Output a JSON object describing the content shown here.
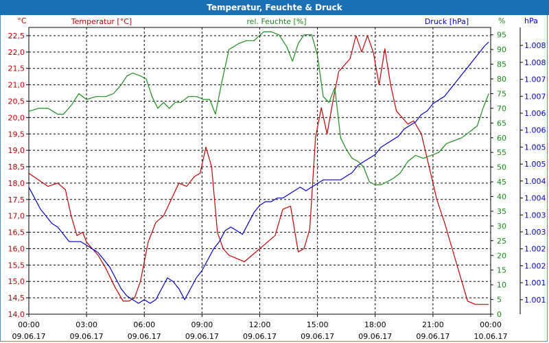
{
  "chart_data": {
    "type": "line",
    "title": "Temperatur, Feuchte & Druck",
    "left_axis": {
      "unit": "°C",
      "label": "Temperatur [°C]",
      "min": 14.0,
      "max": 22.75,
      "ticks": [
        "14,0",
        "14,5",
        "15,0",
        "15,5",
        "16,0",
        "16,5",
        "17,0",
        "17,5",
        "18,0",
        "18,5",
        "19,0",
        "19,5",
        "20,0",
        "20,5",
        "21,0",
        "21,5",
        "22,0",
        "22,5"
      ]
    },
    "mid_axis": {
      "unit": "%",
      "label": "rel. Feuchte [%]",
      "min": 0,
      "max": 97.5,
      "ticks": [
        "0",
        "5",
        "10",
        "15",
        "20",
        "25",
        "30",
        "35",
        "40",
        "45",
        "50",
        "55",
        "60",
        "65",
        "70",
        "75",
        "80",
        "85",
        "90",
        "95"
      ]
    },
    "right_axis": {
      "unit": "hPa",
      "label": "Druck [hPa]",
      "min": 1000.6,
      "max": 1008.5,
      "ticks": [
        "1.001",
        "1.001",
        "1.002",
        "1.002",
        "1.003",
        "1.003",
        "1.004",
        "1.004",
        "1.005",
        "1.005",
        "1.006",
        "1.006",
        "1.007",
        "1.007",
        "1.008",
        "1.008"
      ]
    },
    "x_labels": [
      {
        "time": "00:00",
        "date": "09.06.17"
      },
      {
        "time": "03:00",
        "date": "09.06.17"
      },
      {
        "time": "06:00",
        "date": "09.06.17"
      },
      {
        "time": "09:00",
        "date": "09.06.17"
      },
      {
        "time": "12:00",
        "date": "09.06.17"
      },
      {
        "time": "15:00",
        "date": "09.06.17"
      },
      {
        "time": "18:00",
        "date": "09.06.17"
      },
      {
        "time": "21:00",
        "date": "09.06.17"
      },
      {
        "time": "00:00",
        "date": "10.06.17"
      }
    ],
    "series": [
      {
        "name": "Temperatur [°C]",
        "color": "#c00000",
        "axis": "left",
        "x": [
          0,
          0.5,
          1,
          1.5,
          1.9,
          2.2,
          2.5,
          2.8,
          3.0,
          3.3,
          3.6,
          4.0,
          4.5,
          4.9,
          5.2,
          5.5,
          5.8,
          6.2,
          6.6,
          7.0,
          7.4,
          7.8,
          8.2,
          8.6,
          8.9,
          9.2,
          9.5,
          9.8,
          10.1,
          10.4,
          10.8,
          11.2,
          11.6,
          12.0,
          12.4,
          12.8,
          13.2,
          13.6,
          14.0,
          14.3,
          14.6,
          14.9,
          15.2,
          15.5,
          15.8,
          16.1,
          16.4,
          16.7,
          17.0,
          17.3,
          17.6,
          17.9,
          18.2,
          18.5,
          18.8,
          19.1,
          19.4,
          19.7,
          20.0,
          20.4,
          20.8,
          21.2,
          21.6,
          22.0,
          22.4,
          22.8,
          23.2,
          23.6,
          23.9
        ],
        "values": [
          18.3,
          18.1,
          17.9,
          18.0,
          17.8,
          17.0,
          16.4,
          16.5,
          16.2,
          16.0,
          15.8,
          15.4,
          14.8,
          14.4,
          14.4,
          14.5,
          15.0,
          16.2,
          16.8,
          17.0,
          17.5,
          18.0,
          17.9,
          18.2,
          18.3,
          19.1,
          18.5,
          16.5,
          16.0,
          15.8,
          15.7,
          15.6,
          15.8,
          16.0,
          16.2,
          16.4,
          17.2,
          17.3,
          15.9,
          16.0,
          16.6,
          19.4,
          20.3,
          19.5,
          20.5,
          21.4,
          21.6,
          21.8,
          22.5,
          22.0,
          22.5,
          22.0,
          21.0,
          22.1,
          21.0,
          20.2,
          20.0,
          19.8,
          19.9,
          19.5,
          18.5,
          17.5,
          16.8,
          16.0,
          15.2,
          14.4,
          14.3,
          14.3,
          14.3
        ]
      },
      {
        "name": "rel. Feuchte [%]",
        "color": "#1a8a1a",
        "axis": "mid",
        "x": [
          0,
          0.5,
          1,
          1.5,
          1.8,
          2.2,
          2.6,
          3.0,
          3.5,
          4.0,
          4.4,
          4.8,
          5.1,
          5.4,
          5.8,
          6.1,
          6.4,
          6.7,
          7.0,
          7.3,
          7.6,
          7.9,
          8.3,
          8.7,
          9.1,
          9.4,
          9.7,
          10.0,
          10.4,
          10.9,
          11.3,
          11.7,
          12.2,
          12.6,
          13.0,
          13.4,
          13.7,
          14.0,
          14.3,
          14.7,
          15.0,
          15.3,
          15.6,
          15.9,
          16.2,
          16.5,
          16.8,
          17.1,
          17.4,
          17.7,
          18.0,
          18.3,
          18.6,
          18.9,
          19.3,
          19.7,
          20.1,
          20.5,
          20.9,
          21.3,
          21.7,
          22.1,
          22.5,
          22.9,
          23.3,
          23.6,
          23.9
        ],
        "values": [
          69,
          70,
          70,
          68,
          68,
          71,
          75,
          73,
          74,
          74,
          75,
          78,
          81,
          82,
          81,
          80,
          74,
          70,
          72,
          70,
          72,
          72,
          74,
          74,
          73,
          73,
          68,
          78,
          90,
          92,
          93,
          93,
          96,
          96,
          95,
          91,
          86,
          92,
          95,
          95,
          88,
          74,
          72,
          77,
          60,
          56,
          53,
          52,
          50,
          45,
          44,
          44,
          45,
          46,
          48,
          52,
          54,
          53,
          54,
          55,
          58,
          59,
          60,
          62,
          64,
          70,
          75
        ]
      },
      {
        "name": "Druck [hPa]",
        "color": "#0000c0",
        "axis": "right",
        "x": [
          0,
          0.3,
          0.6,
          0.9,
          1.2,
          1.5,
          1.8,
          2.1,
          2.4,
          2.7,
          3.0,
          3.3,
          3.6,
          3.9,
          4.2,
          4.5,
          4.8,
          5.1,
          5.4,
          5.7,
          6.0,
          6.3,
          6.6,
          6.9,
          7.2,
          7.5,
          7.8,
          8.1,
          8.4,
          8.7,
          9.0,
          9.3,
          9.6,
          9.9,
          10.2,
          10.5,
          10.8,
          11.1,
          11.4,
          11.7,
          12.0,
          12.3,
          12.6,
          12.9,
          13.2,
          13.5,
          13.8,
          14.1,
          14.4,
          14.7,
          15.0,
          15.3,
          15.6,
          15.9,
          16.2,
          16.5,
          16.8,
          17.1,
          17.4,
          17.7,
          18.0,
          18.3,
          18.6,
          18.9,
          19.2,
          19.5,
          19.8,
          20.1,
          20.4,
          20.7,
          21.0,
          21.3,
          21.6,
          21.9,
          22.2,
          22.5,
          22.8,
          23.1,
          23.4,
          23.7,
          23.9
        ],
        "values": [
          1004.1,
          1003.8,
          1003.5,
          1003.3,
          1003.1,
          1003.0,
          1002.8,
          1002.6,
          1002.6,
          1002.6,
          1002.5,
          1002.4,
          1002.3,
          1002.1,
          1001.9,
          1001.6,
          1001.3,
          1001.1,
          1001.0,
          1000.9,
          1001.0,
          1000.9,
          1001.0,
          1001.3,
          1001.6,
          1001.5,
          1001.3,
          1001.0,
          1001.3,
          1001.6,
          1001.8,
          1002.1,
          1002.4,
          1002.6,
          1002.9,
          1003.0,
          1002.9,
          1002.8,
          1003.1,
          1003.4,
          1003.6,
          1003.7,
          1003.7,
          1003.8,
          1003.8,
          1003.9,
          1004.0,
          1004.1,
          1004.0,
          1004.1,
          1004.2,
          1004.3,
          1004.3,
          1004.3,
          1004.3,
          1004.4,
          1004.5,
          1004.7,
          1004.8,
          1004.9,
          1005.0,
          1005.2,
          1005.3,
          1005.4,
          1005.5,
          1005.7,
          1005.8,
          1005.9,
          1006.1,
          1006.2,
          1006.4,
          1006.5,
          1006.6,
          1006.8,
          1007.0,
          1007.2,
          1007.4,
          1007.6,
          1007.8,
          1008.0,
          1008.1
        ]
      }
    ]
  }
}
